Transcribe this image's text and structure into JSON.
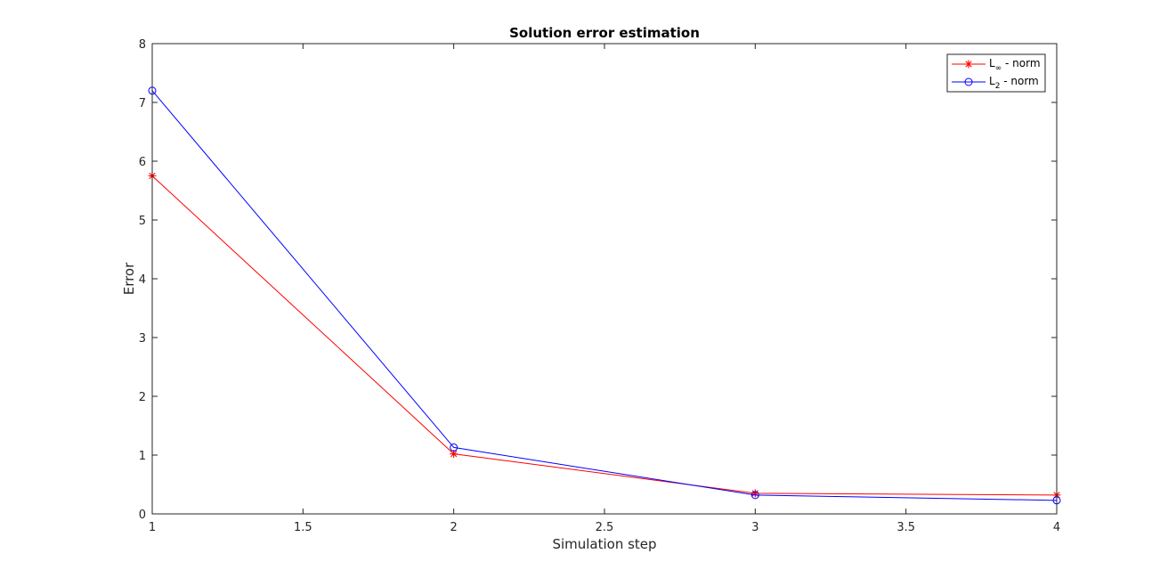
{
  "chart_data": {
    "type": "line",
    "title": "Solution error estimation",
    "xlabel": "Simulation step",
    "ylabel": "Error",
    "xlim": [
      1,
      4
    ],
    "ylim": [
      0,
      8
    ],
    "xticks": [
      1,
      1.5,
      2,
      2.5,
      3,
      3.5,
      4
    ],
    "yticks": [
      0,
      1,
      2,
      3,
      4,
      5,
      6,
      7,
      8
    ],
    "grid": false,
    "legend_position": "top-right",
    "x": [
      1,
      2,
      3,
      4
    ],
    "series": [
      {
        "name": "L∞ - norm",
        "name_base": "L",
        "name_sub": "∞",
        "name_rest": " - norm",
        "color": "#ff0000",
        "marker": "asterisk",
        "values": [
          5.75,
          1.02,
          0.35,
          0.32
        ]
      },
      {
        "name": "L2 - norm",
        "name_base": "L",
        "name_sub": "2",
        "name_rest": " - norm",
        "color": "#0000ff",
        "marker": "circle",
        "values": [
          7.2,
          1.13,
          0.32,
          0.23
        ]
      }
    ]
  }
}
